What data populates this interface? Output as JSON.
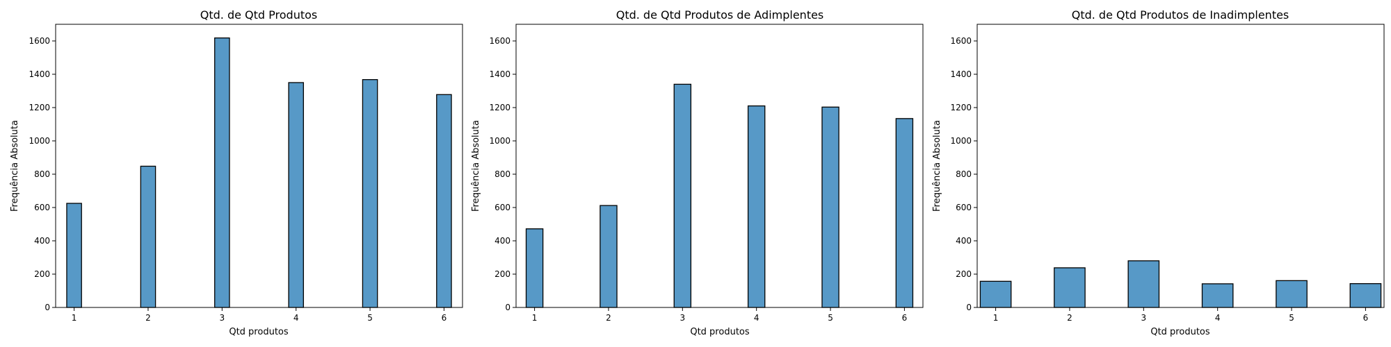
{
  "style": {
    "bar_color": "#5799c7",
    "edge_color": "#000000"
  },
  "chart_data": [
    {
      "type": "bar",
      "title": "Qtd. de Qtd Produtos",
      "xlabel": "Qtd produtos",
      "ylabel": "Frequência Absoluta",
      "ylim": [
        0,
        1700
      ],
      "xlim": [
        0.75,
        6.25
      ],
      "yticks": [
        0,
        200,
        400,
        600,
        800,
        1000,
        1200,
        1400,
        1600
      ],
      "xticks": [
        1,
        2,
        3,
        4,
        5,
        6
      ],
      "bin_width": 0.2,
      "categories": [
        "1",
        "2",
        "3",
        "4",
        "5",
        "6"
      ],
      "values": [
        625,
        848,
        1618,
        1350,
        1368,
        1278
      ]
    },
    {
      "type": "bar",
      "title": "Qtd. de Qtd Produtos de Adimplentes",
      "xlabel": "Qtd produtos",
      "ylabel": "Frequência Absoluta",
      "ylim": [
        0,
        1700
      ],
      "xlim": [
        0.75,
        6.25
      ],
      "yticks": [
        0,
        200,
        400,
        600,
        800,
        1000,
        1200,
        1400,
        1600
      ],
      "xticks": [
        1,
        2,
        3,
        4,
        5,
        6
      ],
      "bin_width": 0.227,
      "categories": [
        "1",
        "2",
        "3",
        "4",
        "5",
        "6"
      ],
      "values": [
        472,
        612,
        1340,
        1210,
        1203,
        1134
      ]
    },
    {
      "type": "bar",
      "title": "Qtd. de Qtd Produtos de Inadimplentes",
      "xlabel": "Qtd produtos",
      "ylabel": "Frequência Absoluta",
      "ylim": [
        0,
        1700
      ],
      "xlim": [
        0.75,
        6.25
      ],
      "yticks": [
        0,
        200,
        400,
        600,
        800,
        1000,
        1200,
        1400,
        1600
      ],
      "xticks": [
        1,
        2,
        3,
        4,
        5,
        6
      ],
      "bin_width": 0.417,
      "categories": [
        "1",
        "2",
        "3",
        "4",
        "5",
        "6"
      ],
      "values": [
        157,
        238,
        280,
        142,
        161,
        143
      ]
    }
  ]
}
